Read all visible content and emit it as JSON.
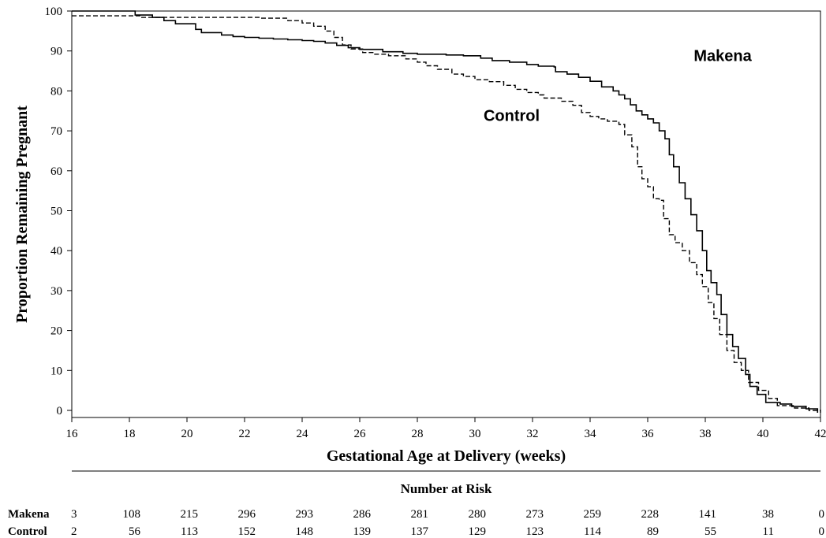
{
  "chart_data": {
    "type": "line",
    "xlabel": "Gestational Age at Delivery (weeks)",
    "ylabel": "Proportion Remaining Pregnant",
    "xlim": [
      16,
      42
    ],
    "ylim": [
      0,
      100
    ],
    "x_ticks": [
      16,
      18,
      20,
      22,
      24,
      26,
      28,
      30,
      32,
      34,
      36,
      38,
      40,
      42
    ],
    "y_ticks": [
      0,
      10,
      20,
      30,
      40,
      50,
      60,
      70,
      80,
      90,
      100
    ],
    "grid": false,
    "series": [
      {
        "name": "Makena",
        "line_style": "solid",
        "points": [
          [
            16,
            100
          ],
          [
            18.1,
            100
          ],
          [
            18.2,
            99
          ],
          [
            18.8,
            98.4
          ],
          [
            19.2,
            97.6
          ],
          [
            19.6,
            96.8
          ],
          [
            20.3,
            95.4
          ],
          [
            20.5,
            94.6
          ],
          [
            21.2,
            94
          ],
          [
            21.6,
            93.6
          ],
          [
            22,
            93.4
          ],
          [
            22.5,
            93.2
          ],
          [
            23,
            93
          ],
          [
            23.5,
            92.8
          ],
          [
            24,
            92.6
          ],
          [
            24.4,
            92.4
          ],
          [
            24.8,
            92
          ],
          [
            25.2,
            91.4
          ],
          [
            25.6,
            90.8
          ],
          [
            26,
            90.4
          ],
          [
            26.8,
            89.8
          ],
          [
            27.5,
            89.4
          ],
          [
            28,
            89.2
          ],
          [
            29,
            89
          ],
          [
            29.6,
            88.8
          ],
          [
            30.2,
            88.2
          ],
          [
            30.6,
            87.6
          ],
          [
            31.2,
            87.2
          ],
          [
            31.8,
            86.6
          ],
          [
            32.2,
            86.2
          ],
          [
            32.75,
            86
          ],
          [
            32.8,
            84.8
          ],
          [
            33.2,
            84.2
          ],
          [
            33.6,
            83.4
          ],
          [
            34,
            82.4
          ],
          [
            34.4,
            81
          ],
          [
            34.8,
            80
          ],
          [
            35,
            79
          ],
          [
            35.2,
            78
          ],
          [
            35.4,
            76.5
          ],
          [
            35.6,
            75
          ],
          [
            35.8,
            74
          ],
          [
            36,
            73
          ],
          [
            36.2,
            72
          ],
          [
            36.4,
            70
          ],
          [
            36.6,
            68
          ],
          [
            36.75,
            64
          ],
          [
            36.9,
            61
          ],
          [
            37.1,
            57
          ],
          [
            37.3,
            53
          ],
          [
            37.5,
            49
          ],
          [
            37.7,
            45
          ],
          [
            37.9,
            40
          ],
          [
            38.05,
            35
          ],
          [
            38.2,
            32
          ],
          [
            38.4,
            29
          ],
          [
            38.55,
            24
          ],
          [
            38.75,
            19
          ],
          [
            38.95,
            16
          ],
          [
            39.15,
            13
          ],
          [
            39.4,
            9
          ],
          [
            39.55,
            6
          ],
          [
            39.8,
            4
          ],
          [
            40.1,
            2
          ],
          [
            40.6,
            1.6
          ],
          [
            41.0,
            1
          ],
          [
            41.5,
            0.4
          ],
          [
            41.9,
            -0.6
          ]
        ]
      },
      {
        "name": "Control",
        "line_style": "dashed",
        "points": [
          [
            16,
            98.8
          ],
          [
            18,
            98.8
          ],
          [
            18.4,
            98.4
          ],
          [
            20.5,
            98.4
          ],
          [
            22.5,
            98.2
          ],
          [
            23.5,
            97.6
          ],
          [
            24,
            97
          ],
          [
            24.4,
            96.2
          ],
          [
            24.8,
            95
          ],
          [
            25.1,
            93.4
          ],
          [
            25.4,
            91.5
          ],
          [
            25.7,
            90.5
          ],
          [
            26.1,
            89.6
          ],
          [
            26.5,
            89.2
          ],
          [
            27,
            88.8
          ],
          [
            27.6,
            88
          ],
          [
            28,
            87.2
          ],
          [
            28.3,
            86.3
          ],
          [
            28.7,
            85.4
          ],
          [
            29.2,
            84.2
          ],
          [
            29.6,
            83.6
          ],
          [
            30,
            82.8
          ],
          [
            30.5,
            82.3
          ],
          [
            31,
            81.4
          ],
          [
            31.4,
            80.4
          ],
          [
            31.8,
            79.6
          ],
          [
            32.2,
            79
          ],
          [
            32.4,
            78.2
          ],
          [
            33,
            77.4
          ],
          [
            33.4,
            76.4
          ],
          [
            33.7,
            74.6
          ],
          [
            34,
            73.6
          ],
          [
            34.3,
            73
          ],
          [
            34.6,
            72.4
          ],
          [
            35,
            71.6
          ],
          [
            35.2,
            69
          ],
          [
            35.45,
            66
          ],
          [
            35.65,
            61
          ],
          [
            35.8,
            58
          ],
          [
            36,
            56
          ],
          [
            36.2,
            53
          ],
          [
            36.4,
            52.6
          ],
          [
            36.55,
            48
          ],
          [
            36.75,
            44
          ],
          [
            36.95,
            42
          ],
          [
            37.2,
            40
          ],
          [
            37.45,
            37
          ],
          [
            37.7,
            34
          ],
          [
            37.9,
            31
          ],
          [
            38.1,
            27
          ],
          [
            38.3,
            23
          ],
          [
            38.5,
            19
          ],
          [
            38.75,
            15
          ],
          [
            39,
            12
          ],
          [
            39.25,
            10
          ],
          [
            39.5,
            7
          ],
          [
            39.85,
            5
          ],
          [
            40.2,
            3
          ],
          [
            40.5,
            1.2
          ],
          [
            41.1,
            0.6
          ],
          [
            41.6,
            0
          ],
          [
            42,
            -0.6
          ]
        ]
      }
    ],
    "annotations": [
      {
        "text": "Makena",
        "x": 37.6,
        "y": 87.5
      },
      {
        "text": "Control",
        "x": 30.3,
        "y": 72.5
      }
    ],
    "risk_table": {
      "title": "Number at Risk",
      "columns": [
        16,
        18,
        20,
        22,
        24,
        26,
        28,
        30,
        32,
        34,
        36,
        38,
        40,
        42
      ],
      "rows": [
        {
          "label": "Makena",
          "values": [
            "3",
            "108",
            "215",
            "296",
            "293",
            "286",
            "281",
            "280",
            "273",
            "259",
            "228",
            "141",
            "38",
            "0"
          ]
        },
        {
          "label": "Control",
          "values": [
            "2",
            "56",
            "113",
            "152",
            "148",
            "139",
            "137",
            "129",
            "123",
            "114",
            "89",
            "55",
            "11",
            "0"
          ]
        }
      ]
    }
  }
}
